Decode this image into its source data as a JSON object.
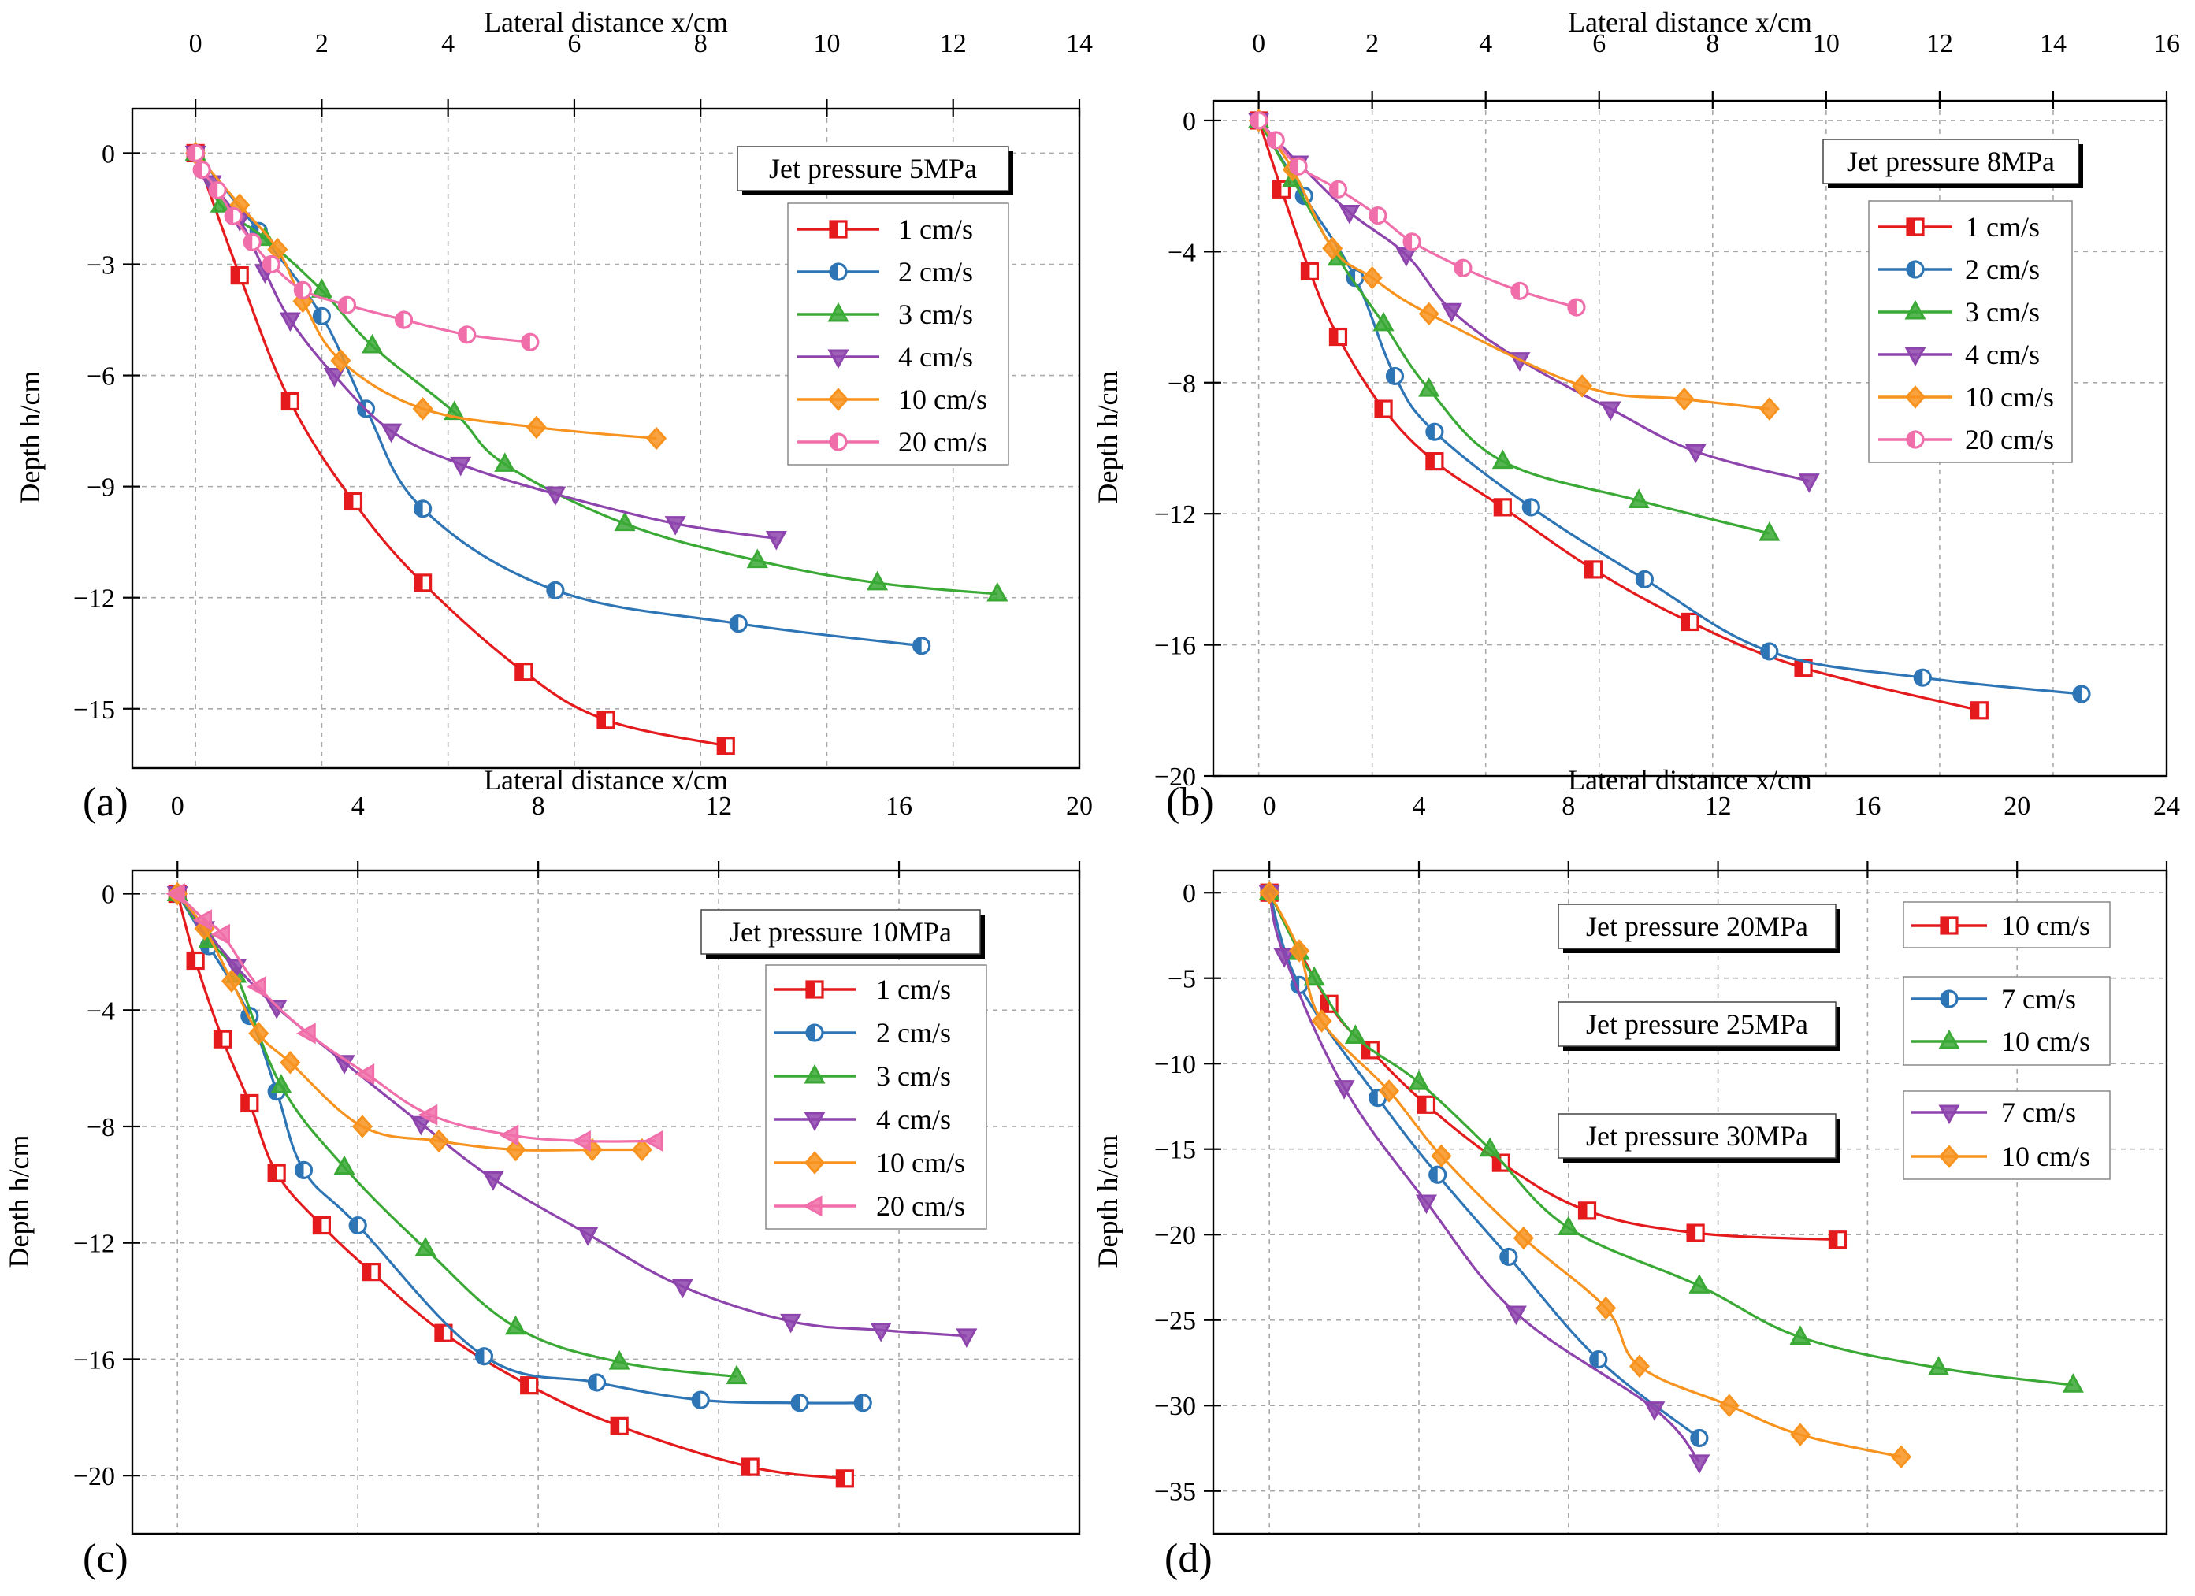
{
  "chart_data": [
    {
      "panel": "(a)",
      "type": "line",
      "xlabel": "Lateral distance x/cm",
      "ylabel": "Depth h/cm",
      "xlim": [
        -1,
        14
      ],
      "ylim": [
        -16.6,
        1.2
      ],
      "xticks": [
        0,
        2,
        4,
        6,
        8,
        10,
        12,
        14
      ],
      "yticks": [
        0,
        -3,
        -6,
        -9,
        -12,
        -15
      ],
      "grid": true,
      "x_axis_position": "top",
      "annotation": "Jet pressure 5MPa",
      "legend_position": "top-right",
      "series": [
        {
          "name": "1 cm/s",
          "color": "#e41a1c",
          "marker": "square",
          "x": [
            0,
            0.7,
            1.5,
            2.5,
            3.6,
            5.2,
            6.5,
            8.4
          ],
          "y": [
            0,
            -3.3,
            -6.7,
            -9.4,
            -11.6,
            -14.0,
            -15.3,
            -16.0
          ]
        },
        {
          "name": "2 cm/s",
          "color": "#2e75b6",
          "marker": "circle",
          "x": [
            0,
            1.0,
            2.0,
            2.7,
            3.6,
            5.7,
            8.6,
            11.5
          ],
          "y": [
            0,
            -2.1,
            -4.4,
            -6.9,
            -9.6,
            -11.8,
            -12.7,
            -13.3
          ]
        },
        {
          "name": "3 cm/s",
          "color": "#3aa935",
          "marker": "triangle-up",
          "x": [
            0,
            0.4,
            1.1,
            2.0,
            2.8,
            4.1,
            4.9,
            6.8,
            8.9,
            10.8,
            12.7
          ],
          "y": [
            0,
            -1.4,
            -2.3,
            -3.7,
            -5.2,
            -7.0,
            -8.4,
            -10.0,
            -11.0,
            -11.6,
            -11.9
          ]
        },
        {
          "name": "4 cm/s",
          "color": "#8e44ad",
          "marker": "triangle-down",
          "x": [
            0,
            0.25,
            0.7,
            1.1,
            1.5,
            2.2,
            3.1,
            4.2,
            5.7,
            7.6,
            9.2
          ],
          "y": [
            0,
            -0.8,
            -1.8,
            -3.2,
            -4.5,
            -6.0,
            -7.5,
            -8.4,
            -9.2,
            -10.0,
            -10.4
          ]
        },
        {
          "name": "10 cm/s",
          "color": "#f7931e",
          "marker": "diamond",
          "x": [
            0,
            0.7,
            1.3,
            1.7,
            2.3,
            3.6,
            5.4,
            7.3
          ],
          "y": [
            0,
            -1.4,
            -2.6,
            -4.0,
            -5.6,
            -6.9,
            -7.4,
            -7.7
          ]
        },
        {
          "name": "20 cm/s",
          "color": "#f06ea9",
          "marker": "circle",
          "x": [
            0,
            0.1,
            0.35,
            0.6,
            0.9,
            1.2,
            1.7,
            2.4,
            3.3,
            4.3,
            5.3
          ],
          "y": [
            0,
            -0.45,
            -1.0,
            -1.7,
            -2.4,
            -3.0,
            -3.7,
            -4.1,
            -4.5,
            -4.9,
            -5.1
          ]
        }
      ]
    },
    {
      "panel": "(b)",
      "type": "line",
      "xlabel": "Lateral distance x/cm",
      "ylabel": "Depth h/cm",
      "xlim": [
        -0.8,
        16
      ],
      "ylim": [
        -20,
        0.6
      ],
      "xticks": [
        0,
        2,
        4,
        6,
        8,
        10,
        12,
        14,
        16
      ],
      "yticks": [
        0,
        -4,
        -8,
        -12,
        -16,
        -20
      ],
      "grid": true,
      "x_axis_position": "top",
      "annotation": "Jet pressure 8MPa",
      "legend_position": "top-right",
      "series": [
        {
          "name": "1 cm/s",
          "color": "#e41a1c",
          "marker": "square",
          "x": [
            0,
            0.4,
            0.9,
            1.4,
            2.2,
            3.1,
            4.3,
            5.9,
            7.6,
            9.6,
            12.7
          ],
          "y": [
            0,
            -2.1,
            -4.6,
            -6.6,
            -8.8,
            -10.4,
            -11.8,
            -13.7,
            -15.3,
            -16.7,
            -18.0
          ]
        },
        {
          "name": "2 cm/s",
          "color": "#2e75b6",
          "marker": "circle",
          "x": [
            0,
            0.8,
            1.7,
            2.4,
            3.1,
            4.8,
            6.8,
            9.0,
            11.7,
            14.5
          ],
          "y": [
            0,
            -2.3,
            -4.8,
            -7.8,
            -9.5,
            -11.8,
            -14.0,
            -16.2,
            -17.0,
            -17.5
          ]
        },
        {
          "name": "3 cm/s",
          "color": "#3aa935",
          "marker": "triangle-up",
          "x": [
            0,
            0.6,
            1.4,
            2.2,
            3.0,
            4.3,
            6.7,
            9.0
          ],
          "y": [
            0,
            -1.8,
            -4.2,
            -6.2,
            -8.2,
            -10.4,
            -11.6,
            -12.6
          ]
        },
        {
          "name": "4 cm/s",
          "color": "#8e44ad",
          "marker": "triangle-down",
          "x": [
            0,
            0.7,
            1.6,
            2.6,
            3.4,
            4.6,
            6.2,
            7.7,
            9.7
          ],
          "y": [
            0,
            -1.3,
            -2.8,
            -4.1,
            -5.8,
            -7.3,
            -8.8,
            -10.1,
            -11.0
          ]
        },
        {
          "name": "10 cm/s",
          "color": "#f7931e",
          "marker": "diamond",
          "x": [
            0,
            0.6,
            1.3,
            2.0,
            3.0,
            5.7,
            7.5,
            9.0
          ],
          "y": [
            0,
            -1.5,
            -3.9,
            -4.8,
            -5.9,
            -8.1,
            -8.5,
            -8.8
          ]
        },
        {
          "name": "20 cm/s",
          "color": "#f06ea9",
          "marker": "circle",
          "x": [
            0,
            0.3,
            0.7,
            1.4,
            2.1,
            2.7,
            3.6,
            4.6,
            5.6
          ],
          "y": [
            0,
            -0.6,
            -1.4,
            -2.1,
            -2.9,
            -3.7,
            -4.5,
            -5.2,
            -5.7
          ]
        }
      ]
    },
    {
      "panel": "(c)",
      "type": "line",
      "xlabel": "Lateral distance x/cm",
      "ylabel": "Depth h/cm",
      "xlim": [
        -1,
        20
      ],
      "ylim": [
        -22,
        0.8
      ],
      "xticks": [
        0,
        4,
        8,
        12,
        16,
        20
      ],
      "yticks": [
        0,
        -4,
        -8,
        -12,
        -16,
        -20
      ],
      "grid": true,
      "x_axis_position": "top",
      "annotation": "Jet pressure 10MPa",
      "legend_position": "top-right",
      "series": [
        {
          "name": "1 cm/s",
          "color": "#e41a1c",
          "marker": "square",
          "x": [
            0,
            0.4,
            1.0,
            1.6,
            2.2,
            3.2,
            4.3,
            5.9,
            7.8,
            9.8,
            12.7,
            14.8
          ],
          "y": [
            0,
            -2.3,
            -5.0,
            -7.2,
            -9.6,
            -11.4,
            -13.0,
            -15.1,
            -16.9,
            -18.3,
            -19.7,
            -20.1
          ]
        },
        {
          "name": "2 cm/s",
          "color": "#2e75b6",
          "marker": "circle",
          "x": [
            0,
            0.7,
            1.6,
            2.2,
            2.8,
            4.0,
            6.8,
            9.3,
            11.6,
            13.8,
            15.2
          ],
          "y": [
            0,
            -1.8,
            -4.2,
            -6.8,
            -9.5,
            -11.4,
            -15.9,
            -16.8,
            -17.4,
            -17.5,
            -17.5
          ]
        },
        {
          "name": "3 cm/s",
          "color": "#3aa935",
          "marker": "triangle-up",
          "x": [
            0,
            0.7,
            1.3,
            2.3,
            3.7,
            5.5,
            7.5,
            9.8,
            12.4
          ],
          "y": [
            0,
            -1.6,
            -2.8,
            -6.6,
            -9.4,
            -12.2,
            -14.9,
            -16.1,
            -16.6
          ]
        },
        {
          "name": "4 cm/s",
          "color": "#8e44ad",
          "marker": "triangle-down",
          "x": [
            0,
            0.6,
            1.3,
            2.2,
            3.7,
            5.4,
            7.0,
            9.1,
            11.2,
            13.6,
            15.6,
            17.5
          ],
          "y": [
            0,
            -1.2,
            -2.5,
            -3.9,
            -5.8,
            -7.9,
            -9.8,
            -11.7,
            -13.5,
            -14.7,
            -15.0,
            -15.2
          ]
        },
        {
          "name": "10 cm/s",
          "color": "#f7931e",
          "marker": "diamond",
          "x": [
            0,
            0.6,
            1.2,
            1.8,
            2.5,
            4.1,
            5.8,
            7.5,
            9.2,
            10.3
          ],
          "y": [
            0,
            -1.2,
            -3.0,
            -4.8,
            -5.8,
            -8.0,
            -8.5,
            -8.8,
            -8.8,
            -8.8
          ]
        },
        {
          "name": "20 cm/s",
          "color": "#f06ea9",
          "marker": "triangle-left",
          "x": [
            0,
            0.6,
            1.0,
            1.8,
            2.9,
            4.2,
            5.6,
            7.4,
            9.0,
            10.6
          ],
          "y": [
            0,
            -0.9,
            -1.4,
            -3.2,
            -4.8,
            -6.2,
            -7.6,
            -8.3,
            -8.5,
            -8.5
          ]
        }
      ]
    },
    {
      "panel": "(d)",
      "type": "line",
      "xlabel": "Lateral distance x/cm",
      "ylabel": "Depth h/cm",
      "xlim": [
        -1.5,
        24
      ],
      "ylim": [
        -37.5,
        1.3
      ],
      "xticks": [
        0,
        4,
        8,
        12,
        16,
        20,
        24
      ],
      "yticks": [
        0,
        -5,
        -10,
        -15,
        -20,
        -25,
        -30,
        -35
      ],
      "grid": true,
      "x_axis_position": "top",
      "legend_position": "right",
      "groups": [
        {
          "annotation": "Jet pressure 20MPa",
          "series": [
            "10 cm/s"
          ]
        },
        {
          "annotation": "Jet pressure 25MPa",
          "series": [
            "7 cm/s",
            "10 cm/s"
          ]
        },
        {
          "annotation": "Jet pressure 30MPa",
          "series": [
            "7 cm/s",
            "10 cm/s"
          ]
        }
      ],
      "series": [
        {
          "name": "10 cm/s",
          "group": "Jet pressure 20MPa",
          "color": "#e41a1c",
          "marker": "square",
          "x": [
            0,
            1.6,
            2.7,
            4.2,
            6.2,
            8.5,
            11.4,
            15.2
          ],
          "y": [
            0,
            -6.5,
            -9.2,
            -12.4,
            -15.8,
            -18.6,
            -19.9,
            -20.3
          ]
        },
        {
          "name": "7 cm/s",
          "group": "Jet pressure 25MPa",
          "color": "#2e75b6",
          "marker": "circle",
          "x": [
            0,
            0.8,
            2.9,
            4.5,
            6.4,
            8.8,
            11.5
          ],
          "y": [
            0,
            -5.4,
            -12.0,
            -16.5,
            -21.3,
            -27.3,
            -31.9
          ]
        },
        {
          "name": "10 cm/s",
          "group": "Jet pressure 25MPa",
          "color": "#3aa935",
          "marker": "triangle-up",
          "x": [
            0,
            0.8,
            1.2,
            2.3,
            4.0,
            5.9,
            8.0,
            11.5,
            14.2,
            17.9,
            21.5
          ],
          "y": [
            0,
            -3.5,
            -5.0,
            -8.4,
            -11.1,
            -15.0,
            -19.6,
            -23.0,
            -26.0,
            -27.8,
            -28.8
          ]
        },
        {
          "name": "7 cm/s",
          "group": "Jet pressure 30MPa",
          "color": "#8e44ad",
          "marker": "triangle-down",
          "x": [
            0,
            0.4,
            2.0,
            4.2,
            6.6,
            10.3,
            11.5
          ],
          "y": [
            0,
            -3.7,
            -11.4,
            -18.1,
            -24.6,
            -30.2,
            -33.3
          ]
        },
        {
          "name": "10 cm/s",
          "group": "Jet pressure 30MPa",
          "color": "#f7931e",
          "marker": "diamond",
          "x": [
            0,
            0.8,
            1.4,
            3.2,
            4.6,
            6.8,
            9.0,
            9.9,
            12.3,
            14.2,
            16.9
          ],
          "y": [
            0,
            -3.4,
            -7.5,
            -11.6,
            -15.4,
            -20.2,
            -24.3,
            -27.7,
            -30.0,
            -31.7,
            -33.0
          ]
        }
      ]
    }
  ]
}
